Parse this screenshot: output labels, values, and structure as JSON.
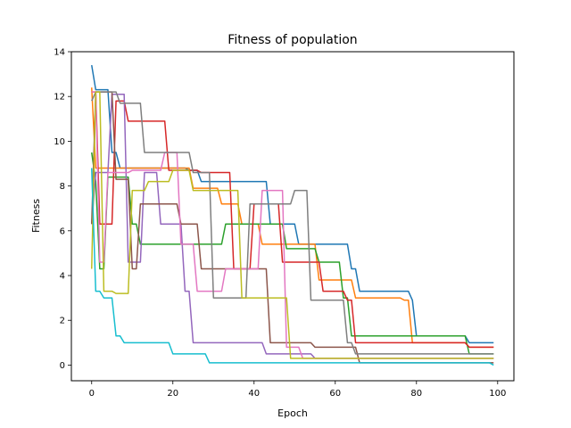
{
  "chart_data": {
    "type": "line",
    "title": "Fitness of population",
    "xlabel": "Epoch",
    "ylabel": "Fitness",
    "xlim": [
      -5,
      104
    ],
    "ylim": [
      -0.7,
      14
    ],
    "x_ticks": [
      0,
      20,
      40,
      60,
      80,
      100
    ],
    "y_ticks": [
      0,
      2,
      4,
      6,
      8,
      10,
      12,
      14
    ],
    "grid": false,
    "legend": "none",
    "series": [
      {
        "color": "#1f77b4",
        "steps": [
          [
            0,
            13.4
          ],
          [
            1,
            12.3
          ],
          [
            5,
            9.5
          ],
          [
            7,
            8.8
          ],
          [
            24,
            8.7
          ],
          [
            27,
            8.2
          ],
          [
            44,
            6.3
          ],
          [
            51,
            5.4
          ],
          [
            64,
            4.3
          ],
          [
            66,
            3.3
          ],
          [
            79,
            2.9
          ],
          [
            80,
            1.3
          ],
          [
            93,
            1.0
          ],
          [
            99,
            1.0
          ]
        ]
      },
      {
        "color": "#ff7f0e",
        "steps": [
          [
            0,
            12.4
          ],
          [
            1,
            8.8
          ],
          [
            25,
            7.9
          ],
          [
            32,
            7.2
          ],
          [
            37,
            6.3
          ],
          [
            42,
            5.4
          ],
          [
            56,
            3.8
          ],
          [
            65,
            3.0
          ],
          [
            77,
            2.9
          ],
          [
            79,
            1.0
          ],
          [
            93,
            0.8
          ],
          [
            99,
            0.8
          ]
        ]
      },
      {
        "color": "#2ca02c",
        "steps": [
          [
            0,
            9.5
          ],
          [
            1,
            8.2
          ],
          [
            2,
            4.3
          ],
          [
            4,
            8.4
          ],
          [
            10,
            6.3
          ],
          [
            12,
            5.4
          ],
          [
            33,
            6.3
          ],
          [
            48,
            5.2
          ],
          [
            56,
            4.6
          ],
          [
            62,
            3.0
          ],
          [
            64,
            1.3
          ],
          [
            80,
            1.3
          ],
          [
            93,
            0.5
          ],
          [
            99,
            0.5
          ]
        ]
      },
      {
        "color": "#d62728",
        "steps": [
          [
            0,
            12.2
          ],
          [
            2,
            6.3
          ],
          [
            6,
            11.8
          ],
          [
            9,
            10.9
          ],
          [
            19,
            8.7
          ],
          [
            27,
            8.6
          ],
          [
            35,
            4.3
          ],
          [
            40,
            7.2
          ],
          [
            47,
            4.6
          ],
          [
            57,
            3.3
          ],
          [
            63,
            2.9
          ],
          [
            65,
            1.0
          ],
          [
            93,
            0.8
          ],
          [
            99,
            0.8
          ]
        ]
      },
      {
        "color": "#9467bd",
        "steps": [
          [
            0,
            6.3
          ],
          [
            1,
            8.6
          ],
          [
            5,
            12.1
          ],
          [
            9,
            4.6
          ],
          [
            13,
            8.6
          ],
          [
            17,
            6.3
          ],
          [
            23,
            3.3
          ],
          [
            25,
            1.0
          ],
          [
            43,
            0.5
          ],
          [
            55,
            0.3
          ],
          [
            99,
            0.3
          ]
        ]
      },
      {
        "color": "#8c564b",
        "steps": [
          [
            0,
            6.3
          ],
          [
            1,
            12.2
          ],
          [
            6,
            8.3
          ],
          [
            10,
            4.3
          ],
          [
            12,
            7.2
          ],
          [
            22,
            6.3
          ],
          [
            27,
            4.3
          ],
          [
            44,
            1.0
          ],
          [
            55,
            0.8
          ],
          [
            66,
            0.1
          ],
          [
            99,
            0.1
          ]
        ]
      },
      {
        "color": "#e377c2",
        "steps": [
          [
            0,
            12.2
          ],
          [
            2,
            4.6
          ],
          [
            4,
            8.6
          ],
          [
            10,
            8.7
          ],
          [
            18,
            9.5
          ],
          [
            22,
            5.4
          ],
          [
            26,
            3.3
          ],
          [
            33,
            4.3
          ],
          [
            42,
            7.8
          ],
          [
            48,
            0.8
          ],
          [
            52,
            0.3
          ],
          [
            99,
            0.3
          ]
        ]
      },
      {
        "color": "#7f7f7f",
        "steps": [
          [
            0,
            11.8
          ],
          [
            1,
            12.2
          ],
          [
            7,
            11.7
          ],
          [
            13,
            9.5
          ],
          [
            25,
            8.6
          ],
          [
            30,
            3.0
          ],
          [
            39,
            7.2
          ],
          [
            50,
            7.8
          ],
          [
            54,
            2.9
          ],
          [
            63,
            1.0
          ],
          [
            65,
            0.5
          ],
          [
            99,
            0.5
          ]
        ]
      },
      {
        "color": "#bcbd22",
        "steps": [
          [
            0,
            4.3
          ],
          [
            1,
            12.2
          ],
          [
            3,
            3.3
          ],
          [
            6,
            3.2
          ],
          [
            10,
            7.8
          ],
          [
            14,
            8.2
          ],
          [
            20,
            8.7
          ],
          [
            25,
            7.8
          ],
          [
            37,
            3.0
          ],
          [
            49,
            0.3
          ],
          [
            99,
            0.3
          ]
        ]
      },
      {
        "color": "#17becf",
        "steps": [
          [
            0,
            8.8
          ],
          [
            1,
            3.3
          ],
          [
            3,
            3.0
          ],
          [
            6,
            1.3
          ],
          [
            8,
            1.0
          ],
          [
            20,
            0.5
          ],
          [
            29,
            0.1
          ],
          [
            99,
            0.0
          ]
        ]
      }
    ]
  }
}
